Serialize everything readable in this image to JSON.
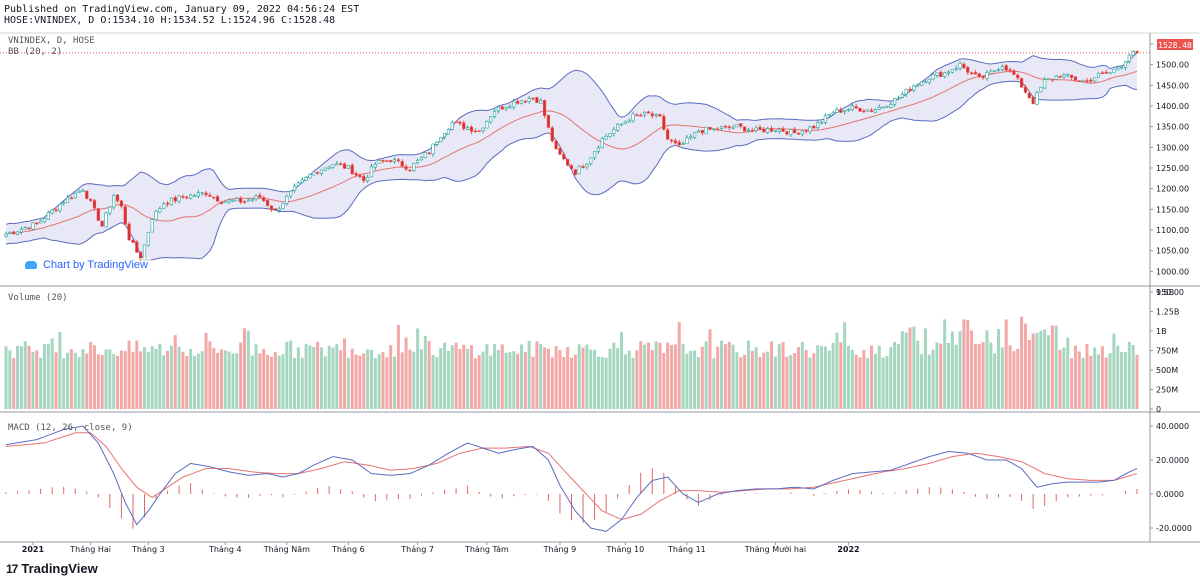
{
  "header": {
    "published": "Published on TradingView.com, January 09, 2022 04:56:24 EST",
    "ohlc": "HOSE:VNINDEX, D O:1534.10 H:1534.52 L:1524.96 C:1528.48"
  },
  "panes": {
    "price_title": "VNINDEX, D, HOSE",
    "bb_title": "BB (20, 2)",
    "volume_title": "Volume (20)",
    "macd_title": "MACD (12, 26, close, 9)",
    "last_price_label": "1528.48"
  },
  "watermark": "Chart by TradingView",
  "footer": {
    "brand": "TradingView",
    "mark": "17"
  },
  "colors": {
    "up": "#26a69a",
    "down": "#ef5350",
    "up_fill": "#ffffff",
    "down_fill": "#d32f2f",
    "bb_band": "#5c6bc0",
    "bb_basis": "#e57373",
    "bb_fill": "#e8e8f6",
    "vol_up": "#a5d6c0",
    "vol_down": "#f4a7a7",
    "macd_line": "#5c6bc0",
    "signal_line": "#e57373",
    "hist": "#e06666"
  },
  "chart_data": [
    {
      "type": "candlestick",
      "title": "VNINDEX, D, HOSE",
      "indicator": "BB (20, 2)",
      "ylim": [
        960,
        1560
      ],
      "y_ticks": [
        "1550.00",
        "1500.00",
        "1450.00",
        "1400.00",
        "1350.00",
        "1300.00",
        "1250.00",
        "1200.00",
        "1150.00",
        "1100.00",
        "1050.00",
        "1000.00",
        "950.00"
      ],
      "x_ticks": [
        "2021",
        "Tháng Hai",
        "Tháng 3",
        "Tháng 4",
        "Tháng Năm",
        "Tháng 6",
        "Tháng 7",
        "Tháng Tám",
        "Tháng 9",
        "Tháng 10",
        "Tháng 11",
        "Tháng Mười hai",
        "2022"
      ],
      "last": 1528.48,
      "close_anchors": [
        [
          0,
          1090
        ],
        [
          8,
          1115
        ],
        [
          15,
          1170
        ],
        [
          20,
          1200
        ],
        [
          22,
          1165
        ],
        [
          25,
          1110
        ],
        [
          28,
          1185
        ],
        [
          30,
          1155
        ],
        [
          32,
          1080
        ],
        [
          35,
          1030
        ],
        [
          38,
          1130
        ],
        [
          41,
          1165
        ],
        [
          46,
          1180
        ],
        [
          52,
          1190
        ],
        [
          56,
          1170
        ],
        [
          62,
          1170
        ],
        [
          66,
          1180
        ],
        [
          70,
          1145
        ],
        [
          75,
          1200
        ],
        [
          80,
          1240
        ],
        [
          85,
          1260
        ],
        [
          89,
          1250
        ],
        [
          93,
          1220
        ],
        [
          96,
          1260
        ],
        [
          100,
          1270
        ],
        [
          105,
          1250
        ],
        [
          110,
          1290
        ],
        [
          113,
          1330
        ],
        [
          116,
          1360
        ],
        [
          119,
          1350
        ],
        [
          123,
          1340
        ],
        [
          127,
          1390
        ],
        [
          132,
          1410
        ],
        [
          137,
          1420
        ],
        [
          139,
          1410
        ],
        [
          141,
          1345
        ],
        [
          143,
          1290
        ],
        [
          145,
          1270
        ],
        [
          148,
          1240
        ],
        [
          151,
          1265
        ],
        [
          155,
          1320
        ],
        [
          159,
          1350
        ],
        [
          163,
          1375
        ],
        [
          167,
          1380
        ],
        [
          170,
          1370
        ],
        [
          172,
          1320
        ],
        [
          175,
          1300
        ],
        [
          180,
          1340
        ],
        [
          185,
          1345
        ],
        [
          190,
          1350
        ],
        [
          195,
          1340
        ],
        [
          200,
          1345
        ],
        [
          205,
          1335
        ],
        [
          210,
          1350
        ],
        [
          215,
          1385
        ],
        [
          220,
          1395
        ],
        [
          225,
          1390
        ],
        [
          228,
          1400
        ],
        [
          232,
          1420
        ],
        [
          236,
          1450
        ],
        [
          240,
          1470
        ],
        [
          244,
          1480
        ],
        [
          248,
          1500
        ],
        [
          250,
          1485
        ],
        [
          253,
          1465
        ],
        [
          256,
          1480
        ],
        [
          259,
          1500
        ],
        [
          262,
          1475
        ],
        [
          265,
          1435
        ],
        [
          267,
          1410
        ],
        [
          270,
          1460
        ],
        [
          274,
          1475
        ],
        [
          278,
          1465
        ],
        [
          281,
          1460
        ],
        [
          284,
          1475
        ],
        [
          287,
          1480
        ],
        [
          290,
          1500
        ],
        [
          292,
          1525
        ],
        [
          294,
          1528
        ]
      ]
    },
    {
      "type": "bar",
      "title": "Volume (20)",
      "ylim": [
        0,
        1500000000
      ],
      "y_ticks": [
        "1.5B",
        "1.25B",
        "1B",
        "750M",
        "500M",
        "250M",
        "0"
      ],
      "values_approx": "daily HOSE volume, mostly 500M–900M, spikes near 1.4B in November 2021"
    },
    {
      "type": "line",
      "title": "MACD (12, 26, close, 9)",
      "ylim": [
        -25,
        45
      ],
      "y_ticks": [
        "40.0000",
        "20.0000",
        "0.0000",
        "-20.0000"
      ],
      "macd_anchors": [
        [
          0,
          29
        ],
        [
          8,
          32
        ],
        [
          15,
          38
        ],
        [
          20,
          40
        ],
        [
          24,
          30
        ],
        [
          28,
          12
        ],
        [
          31,
          -5
        ],
        [
          34,
          -18
        ],
        [
          37,
          -10
        ],
        [
          40,
          0
        ],
        [
          44,
          12
        ],
        [
          48,
          18
        ],
        [
          53,
          16
        ],
        [
          58,
          13
        ],
        [
          63,
          11
        ],
        [
          68,
          12
        ],
        [
          72,
          10
        ],
        [
          76,
          12
        ],
        [
          80,
          17
        ],
        [
          85,
          22
        ],
        [
          90,
          20
        ],
        [
          95,
          12
        ],
        [
          100,
          11
        ],
        [
          105,
          12
        ],
        [
          110,
          17
        ],
        [
          115,
          24
        ],
        [
          120,
          30
        ],
        [
          124,
          27
        ],
        [
          128,
          24
        ],
        [
          132,
          26
        ],
        [
          137,
          28
        ],
        [
          141,
          20
        ],
        [
          144,
          5
        ],
        [
          148,
          -10
        ],
        [
          152,
          -20
        ],
        [
          156,
          -22
        ],
        [
          160,
          -15
        ],
        [
          164,
          -2
        ],
        [
          168,
          8
        ],
        [
          172,
          10
        ],
        [
          176,
          0
        ],
        [
          180,
          -5
        ],
        [
          185,
          0
        ],
        [
          190,
          2
        ],
        [
          195,
          3
        ],
        [
          200,
          3
        ],
        [
          205,
          4
        ],
        [
          210,
          3
        ],
        [
          215,
          8
        ],
        [
          220,
          12
        ],
        [
          225,
          13
        ],
        [
          230,
          14
        ],
        [
          235,
          18
        ],
        [
          240,
          22
        ],
        [
          245,
          25
        ],
        [
          250,
          24
        ],
        [
          255,
          20
        ],
        [
          260,
          20
        ],
        [
          264,
          15
        ],
        [
          268,
          4
        ],
        [
          272,
          6
        ],
        [
          276,
          7
        ],
        [
          280,
          7
        ],
        [
          284,
          7
        ],
        [
          288,
          8
        ],
        [
          292,
          13
        ],
        [
          294,
          15
        ]
      ],
      "signal_anchors": [
        [
          0,
          28
        ],
        [
          10,
          30
        ],
        [
          18,
          36
        ],
        [
          22,
          36
        ],
        [
          26,
          28
        ],
        [
          30,
          15
        ],
        [
          34,
          4
        ],
        [
          38,
          -2
        ],
        [
          42,
          4
        ],
        [
          46,
          10
        ],
        [
          52,
          15
        ],
        [
          58,
          15
        ],
        [
          64,
          13
        ],
        [
          70,
          12
        ],
        [
          76,
          12
        ],
        [
          82,
          15
        ],
        [
          88,
          19
        ],
        [
          94,
          17
        ],
        [
          100,
          14
        ],
        [
          106,
          15
        ],
        [
          112,
          18
        ],
        [
          118,
          24
        ],
        [
          124,
          27
        ],
        [
          130,
          27
        ],
        [
          136,
          28
        ],
        [
          141,
          24
        ],
        [
          145,
          14
        ],
        [
          150,
          2
        ],
        [
          155,
          -10
        ],
        [
          160,
          -15
        ],
        [
          165,
          -12
        ],
        [
          170,
          -4
        ],
        [
          175,
          2
        ],
        [
          180,
          2
        ],
        [
          186,
          1
        ],
        [
          192,
          2
        ],
        [
          198,
          3
        ],
        [
          204,
          3
        ],
        [
          210,
          4
        ],
        [
          216,
          7
        ],
        [
          222,
          10
        ],
        [
          228,
          13
        ],
        [
          234,
          15
        ],
        [
          240,
          18
        ],
        [
          246,
          22
        ],
        [
          252,
          24
        ],
        [
          258,
          22
        ],
        [
          264,
          19
        ],
        [
          270,
          12
        ],
        [
          276,
          9
        ],
        [
          282,
          8
        ],
        [
          288,
          8
        ],
        [
          294,
          12
        ]
      ]
    }
  ]
}
